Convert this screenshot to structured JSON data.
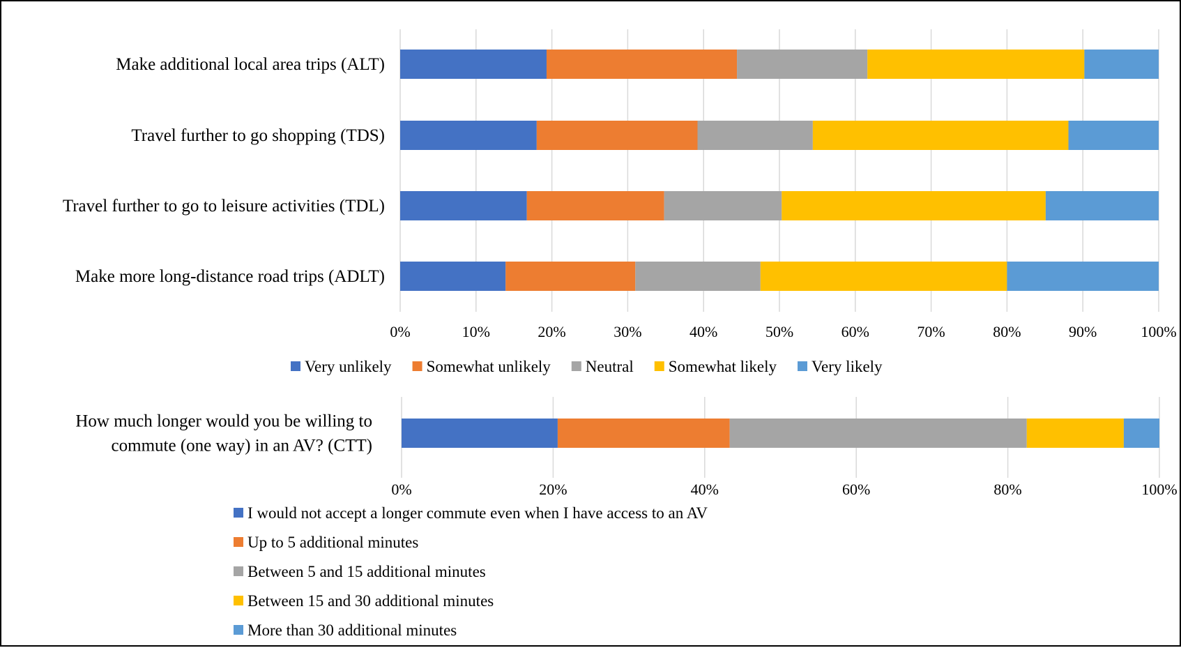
{
  "chart_data": [
    {
      "type": "bar",
      "orientation": "horizontal",
      "stacking": "percent",
      "categories": [
        "Make additional local area trips (ALT)",
        "Travel further to go shopping (TDS)",
        "Travel further to go to leisure activities (TDL)",
        "Make more long-distance road trips (ADLT)"
      ],
      "series": [
        {
          "name": "Very unlikely",
          "color": "#4472C4",
          "values": [
            19.3,
            18.0,
            16.7,
            13.9
          ]
        },
        {
          "name": "Somewhat unlikely",
          "color": "#ED7D31",
          "values": [
            25.1,
            21.2,
            18.1,
            17.1
          ]
        },
        {
          "name": "Neutral",
          "color": "#A5A5A5",
          "values": [
            17.2,
            15.2,
            15.5,
            16.5
          ]
        },
        {
          "name": "Somewhat likely",
          "color": "#FFC000",
          "values": [
            28.6,
            33.7,
            34.8,
            32.5
          ]
        },
        {
          "name": "Very likely",
          "color": "#5B9BD5",
          "values": [
            9.8,
            11.9,
            14.9,
            20.0
          ]
        }
      ],
      "xlim": [
        0,
        100
      ],
      "xticks": [
        "0%",
        "10%",
        "20%",
        "30%",
        "40%",
        "50%",
        "60%",
        "70%",
        "80%",
        "90%",
        "100%"
      ],
      "grid": true,
      "legend": "bottom"
    },
    {
      "type": "bar",
      "orientation": "horizontal",
      "stacking": "percent",
      "categories": [
        [
          "How much longer would you be willing to",
          "commute (one way) in an AV? (CTT)"
        ]
      ],
      "series": [
        {
          "name": "I would not accept a longer commute even when I have access to an AV",
          "color": "#4472C4",
          "values": [
            20.6
          ]
        },
        {
          "name": "Up to 5 additional minutes",
          "color": "#ED7D31",
          "values": [
            22.7
          ]
        },
        {
          "name": "Between 5 and 15 additional minutes",
          "color": "#A5A5A5",
          "values": [
            39.2
          ]
        },
        {
          "name": "Between 15 and 30 additional minutes",
          "color": "#FFC000",
          "values": [
            12.8
          ]
        },
        {
          "name": "More than 30 additional minutes",
          "color": "#5B9BD5",
          "values": [
            4.7
          ]
        }
      ],
      "xlim": [
        0,
        100
      ],
      "xticks": [
        "0%",
        "20%",
        "40%",
        "60%",
        "80%",
        "100%"
      ],
      "grid": true,
      "legend": "bottom"
    }
  ]
}
